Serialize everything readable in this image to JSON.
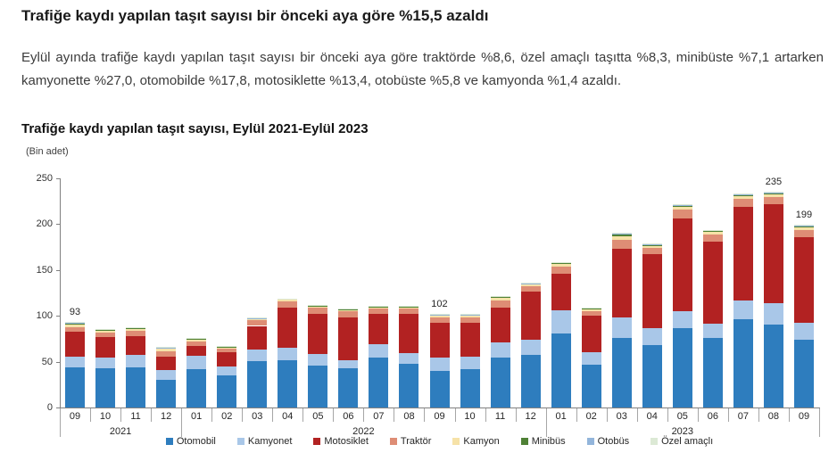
{
  "page": {
    "headline": "Trafiğe kaydı yapılan taşıt sayısı bir önceki aya göre %15,5 azaldı",
    "paragraph": "Eylül ayında trafiğe kaydı yapılan taşıt sayısı bir önceki aya göre traktörde %8,6, özel amaçlı taşıtta %8,3, minibüste %7,1 artarken kamyonette %27,0, otomobilde %17,8, motosiklette %13,4, otobüste %5,8 ve kamyonda %1,4 azaldı."
  },
  "chart_data": {
    "type": "bar",
    "stacked": true,
    "title": "Trafiğe kaydı yapılan taşıt sayısı, Eylül 2021-Eylül 2023",
    "unit_label": "(Bin adet)",
    "ylim": [
      0,
      250
    ],
    "yticks": [
      0,
      50,
      100,
      150,
      200,
      250
    ],
    "grid": false,
    "legend_position": "bottom",
    "axis_color": "#808080",
    "separator_color": "#a6a6a6",
    "text_color": "#262626",
    "categories": [
      "09",
      "10",
      "11",
      "12",
      "01",
      "02",
      "03",
      "04",
      "05",
      "06",
      "07",
      "08",
      "09",
      "10",
      "11",
      "12",
      "01",
      "02",
      "03",
      "04",
      "05",
      "06",
      "07",
      "08",
      "09"
    ],
    "year_groups": [
      {
        "label": "2021",
        "months": 4
      },
      {
        "label": "2022",
        "months": 12
      },
      {
        "label": "2023",
        "months": 9
      }
    ],
    "series": [
      {
        "name": "Otomobil",
        "color": "#2e7dbe",
        "values": [
          44,
          43,
          44,
          30,
          42,
          35,
          51,
          52,
          46,
          43,
          54,
          48,
          40,
          42,
          54,
          57,
          81,
          47,
          76,
          68,
          87,
          76,
          96,
          90,
          74
        ]
      },
      {
        "name": "Kamyonet",
        "color": "#a9c7e8",
        "values": [
          11,
          11,
          13,
          11,
          14,
          10,
          12,
          13,
          12,
          9,
          15,
          11,
          14,
          13,
          17,
          17,
          25,
          13,
          22,
          19,
          18,
          15,
          21,
          24,
          18
        ]
      },
      {
        "name": "Motosiklet",
        "color": "#b22222",
        "values": [
          28,
          23,
          21,
          14,
          11,
          15,
          26,
          44,
          44,
          46,
          33,
          43,
          38,
          37,
          38,
          52,
          40,
          40,
          75,
          80,
          101,
          90,
          102,
          108,
          94
        ]
      },
      {
        "name": "Traktör",
        "color": "#de8d75",
        "values": [
          5,
          5,
          6,
          6,
          5,
          4,
          6,
          7,
          7,
          7,
          6,
          6,
          6,
          6,
          8,
          6,
          8,
          5,
          10,
          7,
          10,
          8,
          9,
          8,
          8
        ]
      },
      {
        "name": "Kamyon",
        "color": "#f6e2a8",
        "values": [
          2.5,
          2,
          2,
          3,
          2,
          1.5,
          1.5,
          1.5,
          1.5,
          1.5,
          1.5,
          1.5,
          2,
          2,
          3,
          2,
          3,
          2,
          4,
          2.5,
          3,
          2.5,
          2.5,
          2.5,
          2.5
        ]
      },
      {
        "name": "Minibüs",
        "color": "#4f8136",
        "values": [
          1,
          1,
          1,
          1,
          1,
          0.8,
          0.8,
          0.8,
          0.8,
          0.8,
          0.8,
          0.8,
          1,
          1,
          1,
          1,
          1,
          1,
          2,
          1,
          1.5,
          1,
          1,
          1,
          1
        ]
      },
      {
        "name": "Otobüs",
        "color": "#93b5db",
        "values": [
          0.8,
          0.5,
          0.5,
          0.5,
          0.5,
          0.4,
          0.4,
          0.4,
          0.4,
          0.4,
          0.4,
          0.4,
          0.5,
          0.5,
          0.5,
          0.5,
          0.5,
          0.5,
          1,
          0.8,
          0.8,
          0.8,
          0.8,
          0.8,
          0.8
        ]
      },
      {
        "name": "Özel amaçlı",
        "color": "#dce9d5",
        "values": [
          0.7,
          0.5,
          0.5,
          0.5,
          0.5,
          0.3,
          0.3,
          0.3,
          0.3,
          0.3,
          0.3,
          0.3,
          0.5,
          0.5,
          0.5,
          0.5,
          0.5,
          0.5,
          1,
          0.7,
          0.7,
          0.7,
          0.7,
          0.7,
          0.7
        ]
      }
    ],
    "bar_value_labels": [
      {
        "month_index": 0,
        "text": "93"
      },
      {
        "month_index": 12,
        "text": "102"
      },
      {
        "month_index": 23,
        "text": "235"
      },
      {
        "month_index": 24,
        "text": "199"
      }
    ]
  }
}
